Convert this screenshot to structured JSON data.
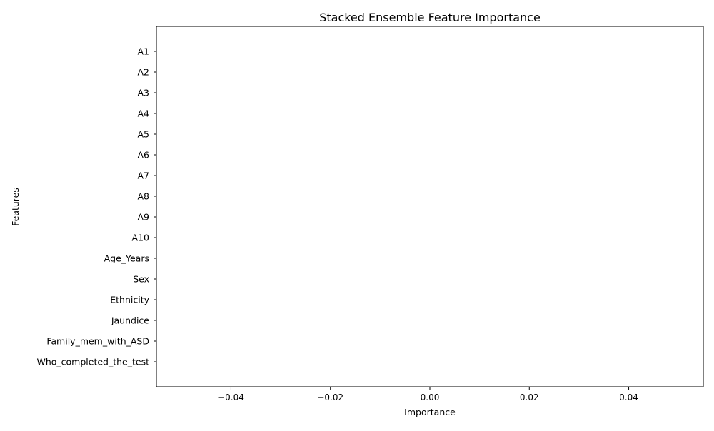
{
  "chart_data": {
    "type": "bar",
    "orientation": "horizontal",
    "title": "Stacked Ensemble Feature Importance",
    "xlabel": "Importance",
    "ylabel": "Features",
    "categories": [
      "A1",
      "A2",
      "A3",
      "A4",
      "A5",
      "A6",
      "A7",
      "A8",
      "A9",
      "A10",
      "Age_Years",
      "Sex",
      "Ethnicity",
      "Jaundice",
      "Family_mem_with_ASD",
      "Who_completed_the_test"
    ],
    "values": [
      0,
      0,
      0,
      0,
      0,
      0,
      0,
      0,
      0,
      0,
      0,
      0,
      0,
      0,
      0,
      0
    ],
    "xlim": [
      -0.055,
      0.055
    ],
    "xticks": [
      -0.04,
      -0.02,
      0.0,
      0.02,
      0.04
    ],
    "xtick_labels": [
      "−0.04",
      "−0.02",
      "0.00",
      "0.02",
      "0.04"
    ],
    "grid": false,
    "bar_color": "#1f77b4"
  }
}
